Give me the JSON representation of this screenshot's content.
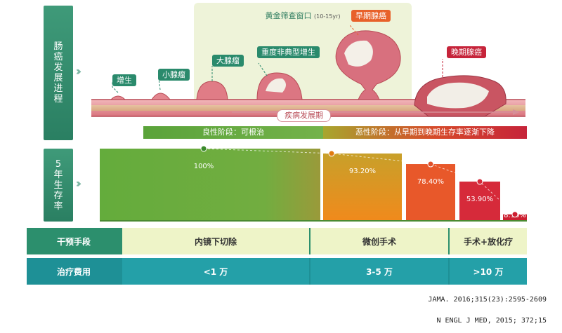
{
  "side_labels": {
    "progression": "肠癌发展进程",
    "survival": "5年生存率"
  },
  "golden_window": {
    "title": "黄金筛查窗口",
    "range": "(10-15yr)"
  },
  "stage_tags": [
    "增生",
    "小腺瘤",
    "大腺瘤",
    "重度非典型增生",
    "早期腺癌",
    "晚期腺癌"
  ],
  "disease_label": "疾病发展期",
  "phases": {
    "benign": "良性阶段：可根治",
    "malignant": "恶性阶段：从早期到晚期生存率逐渐下降"
  },
  "chart_data": {
    "type": "bar",
    "categories": [
      "内镜下切除",
      "微创手术",
      "微创手术",
      "手术+放化疗",
      "手术+放化疗"
    ],
    "values": [
      100,
      93.2,
      78.4,
      53.9,
      8.1
    ],
    "labels": [
      "100%",
      "93.20%",
      "78.40%",
      "53.90%",
      "8.10%"
    ],
    "colors": [
      "#6cae3e",
      "#f08a1c",
      "#e8582a",
      "#d62a3a",
      "#cc1f30"
    ],
    "ylim": [
      0,
      100
    ]
  },
  "table": {
    "intervention_header": "干预手段",
    "interventions": [
      "内镜下切除",
      "微创手术",
      "手术+放化疗"
    ],
    "cost_header": "治疗费用",
    "costs": [
      "<1 万",
      "3-5 万",
      ">10 万"
    ]
  },
  "references": [
    "JAMA. 2016;315(23):2595-2609",
    "N ENGL J MED, 2015; 372;15"
  ]
}
